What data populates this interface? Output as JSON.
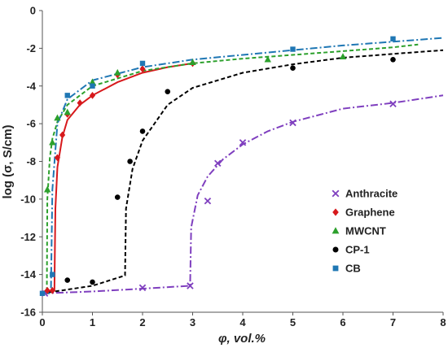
{
  "chart_data": {
    "type": "scatter",
    "title": "",
    "xlabel": "φ, vol.%",
    "ylabel": "log (σ, S/cm)",
    "xlim": [
      0,
      8
    ],
    "ylim": [
      -16,
      0
    ],
    "x_ticks": [
      "0",
      "1",
      "2",
      "3",
      "4",
      "5",
      "6",
      "7",
      "8"
    ],
    "y_ticks": [
      "0",
      "-2",
      "-4",
      "-6",
      "-8",
      "-10",
      "-12",
      "-14",
      "-16"
    ],
    "grid": false,
    "legend_position": "right",
    "series": [
      {
        "name": "Anthracite",
        "marker": "cross",
        "color": "#7F3FBF",
        "line_style": "dash-dot",
        "points": [
          [
            0.05,
            -15.0
          ],
          [
            2.0,
            -14.7
          ],
          [
            2.95,
            -14.6
          ],
          [
            3.3,
            -10.1
          ],
          [
            3.5,
            -8.1
          ],
          [
            4.0,
            -7.0
          ],
          [
            5.0,
            -5.95
          ],
          [
            7.0,
            -4.95
          ]
        ],
        "fit": [
          [
            0.0,
            -15.0
          ],
          [
            1.0,
            -14.9
          ],
          [
            2.0,
            -14.75
          ],
          [
            2.95,
            -14.6
          ],
          [
            2.97,
            -11.5
          ],
          [
            3.1,
            -9.8
          ],
          [
            3.3,
            -8.8
          ],
          [
            3.6,
            -7.9
          ],
          [
            4.0,
            -7.1
          ],
          [
            4.5,
            -6.4
          ],
          [
            5.0,
            -5.9
          ],
          [
            6.0,
            -5.2
          ],
          [
            7.0,
            -4.9
          ],
          [
            8.0,
            -4.5
          ]
        ]
      },
      {
        "name": "Graphene",
        "marker": "diamond",
        "color": "#D7191C",
        "line_style": "solid",
        "points": [
          [
            0.1,
            -14.85
          ],
          [
            0.2,
            -14.85
          ],
          [
            0.3,
            -7.8
          ],
          [
            0.4,
            -6.6
          ],
          [
            0.5,
            -5.5
          ],
          [
            0.75,
            -4.9
          ],
          [
            1.0,
            -4.5
          ],
          [
            1.5,
            -3.4
          ],
          [
            2.0,
            -3.1
          ],
          [
            3.0,
            -2.8
          ]
        ],
        "fit": [
          [
            0.0,
            -14.9
          ],
          [
            0.24,
            -14.85
          ],
          [
            0.26,
            -10.5
          ],
          [
            0.3,
            -8.3
          ],
          [
            0.4,
            -6.7
          ],
          [
            0.5,
            -5.8
          ],
          [
            0.75,
            -5.0
          ],
          [
            1.0,
            -4.5
          ],
          [
            1.5,
            -3.8
          ],
          [
            2.0,
            -3.3
          ],
          [
            2.5,
            -3.0
          ],
          [
            3.0,
            -2.8
          ]
        ]
      },
      {
        "name": "MWCNT",
        "marker": "triangle",
        "color": "#2CA02C",
        "line_style": "dashed",
        "points": [
          [
            0.1,
            -9.5
          ],
          [
            0.2,
            -7.0
          ],
          [
            0.3,
            -5.7
          ],
          [
            0.5,
            -5.4
          ],
          [
            1.0,
            -3.8
          ],
          [
            1.5,
            -3.3
          ],
          [
            3.0,
            -2.75
          ],
          [
            4.5,
            -2.6
          ],
          [
            6.0,
            -2.45
          ]
        ],
        "fit": [
          [
            0.0,
            -15.0
          ],
          [
            0.09,
            -15.0
          ],
          [
            0.1,
            -10.0
          ],
          [
            0.15,
            -7.8
          ],
          [
            0.2,
            -6.8
          ],
          [
            0.3,
            -5.9
          ],
          [
            0.5,
            -5.0
          ],
          [
            1.0,
            -4.0
          ],
          [
            2.0,
            -3.2
          ],
          [
            3.0,
            -2.8
          ],
          [
            4.0,
            -2.55
          ],
          [
            5.0,
            -2.35
          ],
          [
            6.0,
            -2.15
          ],
          [
            7.0,
            -1.95
          ],
          [
            7.5,
            -1.8
          ]
        ]
      },
      {
        "name": "CP-1",
        "marker": "circle",
        "color": "#000000",
        "line_style": "dashed",
        "points": [
          [
            0.5,
            -14.3
          ],
          [
            1.0,
            -14.4
          ],
          [
            1.5,
            -9.9
          ],
          [
            1.75,
            -8.0
          ],
          [
            2.0,
            -6.4
          ],
          [
            2.5,
            -4.3
          ],
          [
            5.0,
            -3.05
          ],
          [
            7.0,
            -2.6
          ]
        ],
        "fit": [
          [
            0.0,
            -15.0
          ],
          [
            1.0,
            -14.6
          ],
          [
            1.65,
            -14.05
          ],
          [
            1.67,
            -10.5
          ],
          [
            1.8,
            -8.4
          ],
          [
            2.0,
            -6.9
          ],
          [
            2.5,
            -5.0
          ],
          [
            3.0,
            -4.1
          ],
          [
            4.0,
            -3.3
          ],
          [
            5.0,
            -2.85
          ],
          [
            6.0,
            -2.5
          ],
          [
            7.0,
            -2.3
          ],
          [
            8.0,
            -2.1
          ]
        ]
      },
      {
        "name": "CB",
        "marker": "square",
        "color": "#1F77B4",
        "line_style": "dash-dot",
        "points": [
          [
            0.0,
            -15.0
          ],
          [
            0.2,
            -14.0
          ],
          [
            0.5,
            -4.5
          ],
          [
            1.0,
            -4.0
          ],
          [
            2.0,
            -2.8
          ],
          [
            5.0,
            -2.05
          ],
          [
            7.0,
            -1.5
          ]
        ],
        "fit": [
          [
            0.0,
            -15.0
          ],
          [
            0.17,
            -15.0
          ],
          [
            0.2,
            -9.5
          ],
          [
            0.3,
            -6.0
          ],
          [
            0.5,
            -4.7
          ],
          [
            1.0,
            -3.7
          ],
          [
            2.0,
            -3.0
          ],
          [
            3.0,
            -2.6
          ],
          [
            4.0,
            -2.35
          ],
          [
            5.0,
            -2.1
          ],
          [
            6.0,
            -1.85
          ],
          [
            7.0,
            -1.65
          ],
          [
            8.0,
            -1.45
          ]
        ]
      }
    ]
  }
}
